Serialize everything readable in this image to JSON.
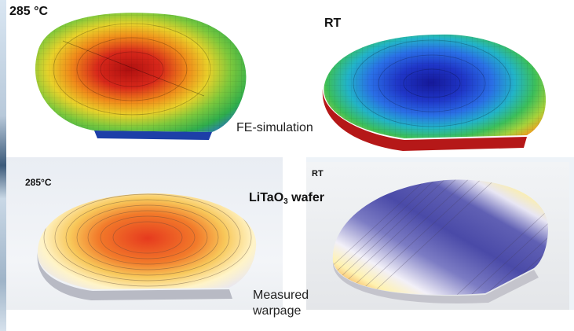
{
  "labels": {
    "top_left_temp": "285 °C",
    "top_right_temp": "RT",
    "simulation_caption": "FE-simulation",
    "bottom_left_temp": "285°C",
    "bottom_right_temp": "RT",
    "material_prefix": "LiTaO",
    "material_subscript": "3",
    "material_suffix": " wafer",
    "measured_caption": "Measured warpage"
  },
  "colors": {
    "sim_hot_center": "#c81414",
    "sim_warm": "#f08a1a",
    "sim_mid": "#e8d22a",
    "sim_green": "#3cb43c",
    "sim_cool_edge": "#1e4ad2",
    "sim_cold_center": "#15189a",
    "meas_hot": "#e63a1e",
    "meas_mid": "#fff4a0",
    "meas_cold": "#4a4aa8"
  }
}
